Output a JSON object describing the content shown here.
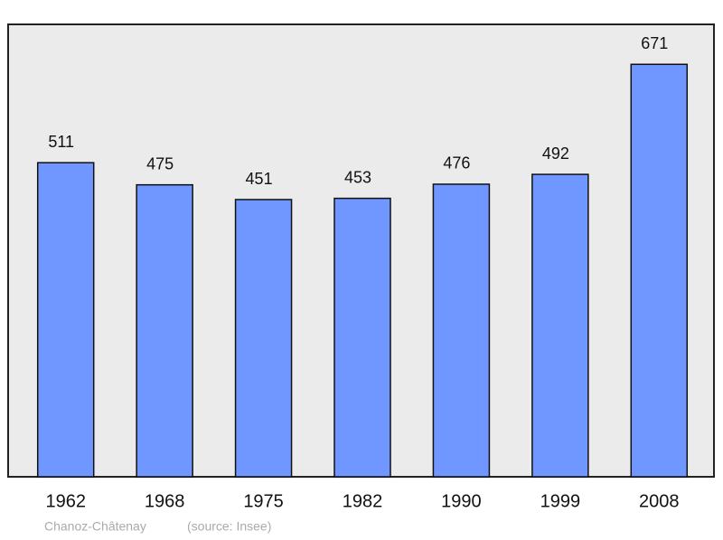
{
  "chart_data": {
    "type": "bar",
    "categories": [
      "1962",
      "1968",
      "1975",
      "1982",
      "1990",
      "1999",
      "2008"
    ],
    "values": [
      511,
      475,
      451,
      453,
      476,
      492,
      671
    ],
    "color": "#7096ff",
    "ylim": [
      0,
      736
    ],
    "caption": "Chanoz-Châtenay",
    "source": "(source: Insee)"
  }
}
